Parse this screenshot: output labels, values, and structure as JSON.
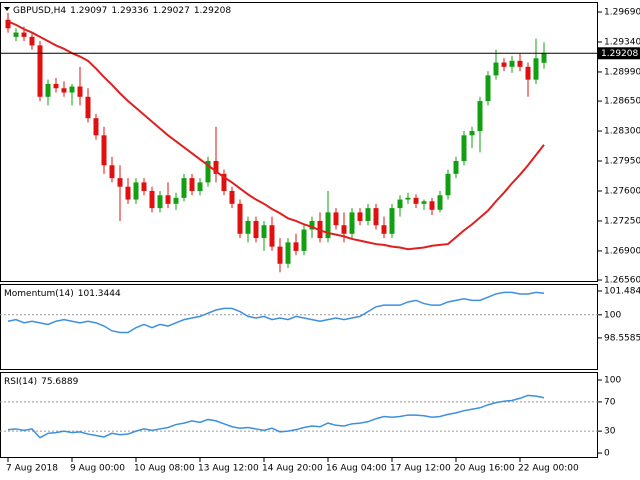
{
  "chart_data": [
    {
      "type": "candlestick",
      "title": "GBPUSD,H4",
      "categories": [
        "7 Aug 2018",
        null,
        null,
        null,
        null,
        null,
        null,
        null,
        "9 Aug 00:00",
        null,
        null,
        null,
        null,
        null,
        null,
        null,
        "10 Aug 08:00",
        null,
        null,
        null,
        null,
        null,
        null,
        null,
        "13 Aug 12:00",
        null,
        null,
        null,
        null,
        null,
        null,
        null,
        "14 Aug 20:00",
        null,
        null,
        null,
        null,
        null,
        null,
        null,
        "16 Aug 04:00",
        null,
        null,
        null,
        null,
        null,
        null,
        null,
        "17 Aug 12:00",
        null,
        null,
        null,
        null,
        null,
        null,
        null,
        "20 Aug 16:00",
        null,
        null,
        null,
        null,
        null,
        null,
        null,
        "22 Aug 00:00",
        null,
        null,
        null
      ],
      "candles": [
        [
          1.296,
          1.2968,
          1.2945,
          1.295
        ],
        [
          1.294,
          1.295,
          1.2935,
          1.2945
        ],
        [
          1.2945,
          1.2952,
          1.2935,
          1.294
        ],
        [
          1.294,
          1.2945,
          1.2925,
          1.293
        ],
        [
          1.293,
          1.2935,
          1.2865,
          1.287
        ],
        [
          1.287,
          1.289,
          1.286,
          1.2885
        ],
        [
          1.2885,
          1.2892,
          1.2875,
          1.288
        ],
        [
          1.288,
          1.2888,
          1.287,
          1.2875
        ],
        [
          1.2875,
          1.2885,
          1.286,
          1.2882
        ],
        [
          1.2882,
          1.2905,
          1.286,
          1.287
        ],
        [
          1.287,
          1.288,
          1.284,
          1.2845
        ],
        [
          1.2845,
          1.285,
          1.282,
          1.2825
        ],
        [
          1.2825,
          1.2835,
          1.278,
          1.279
        ],
        [
          1.279,
          1.28,
          1.277,
          1.2775
        ],
        [
          1.2775,
          1.279,
          1.2725,
          1.2765
        ],
        [
          1.2765,
          1.2775,
          1.2745,
          1.275
        ],
        [
          1.275,
          1.2775,
          1.2745,
          1.277
        ],
        [
          1.277,
          1.2775,
          1.2755,
          1.276
        ],
        [
          1.276,
          1.2765,
          1.2735,
          1.274
        ],
        [
          1.274,
          1.276,
          1.2735,
          1.2755
        ],
        [
          1.2755,
          1.277,
          1.274,
          1.2745
        ],
        [
          1.2745,
          1.2758,
          1.2738,
          1.2752
        ],
        [
          1.2752,
          1.278,
          1.2748,
          1.2775
        ],
        [
          1.2775,
          1.278,
          1.2755,
          1.276
        ],
        [
          1.276,
          1.2775,
          1.2755,
          1.277
        ],
        [
          1.277,
          1.28,
          1.2765,
          1.2795
        ],
        [
          1.2795,
          1.2835,
          1.277,
          1.278
        ],
        [
          1.278,
          1.2785,
          1.2755,
          1.276
        ],
        [
          1.276,
          1.2765,
          1.274,
          1.2745
        ],
        [
          1.2745,
          1.275,
          1.2705,
          1.271
        ],
        [
          1.271,
          1.273,
          1.27,
          1.2725
        ],
        [
          1.2725,
          1.273,
          1.27,
          1.2705
        ],
        [
          1.2705,
          1.2725,
          1.269,
          1.272
        ],
        [
          1.272,
          1.273,
          1.269,
          1.2695
        ],
        [
          1.2695,
          1.2705,
          1.2665,
          1.2675
        ],
        [
          1.2675,
          1.2705,
          1.267,
          1.27
        ],
        [
          1.27,
          1.271,
          1.2685,
          1.269
        ],
        [
          1.269,
          1.272,
          1.2685,
          1.2715
        ],
        [
          1.2715,
          1.273,
          1.2705,
          1.2725
        ],
        [
          1.2725,
          1.2735,
          1.27,
          1.2705
        ],
        [
          1.2705,
          1.276,
          1.27,
          1.2735
        ],
        [
          1.2735,
          1.274,
          1.2715,
          1.272
        ],
        [
          1.272,
          1.2735,
          1.27,
          1.271
        ],
        [
          1.271,
          1.274,
          1.2705,
          1.2735
        ],
        [
          1.2735,
          1.274,
          1.272,
          1.2725
        ],
        [
          1.2725,
          1.2745,
          1.272,
          1.274
        ],
        [
          1.274,
          1.2745,
          1.2715,
          1.272
        ],
        [
          1.272,
          1.273,
          1.2705,
          1.271
        ],
        [
          1.271,
          1.2745,
          1.2705,
          1.274
        ],
        [
          1.274,
          1.2755,
          1.273,
          1.275
        ],
        [
          1.275,
          1.2758,
          1.2745,
          1.2752
        ],
        [
          1.2752,
          1.2756,
          1.274,
          1.2745
        ],
        [
          1.2745,
          1.275,
          1.2738,
          1.2748
        ],
        [
          1.2748,
          1.2752,
          1.2732,
          1.2738
        ],
        [
          1.2738,
          1.276,
          1.2735,
          1.2755
        ],
        [
          1.2755,
          1.2785,
          1.275,
          1.278
        ],
        [
          1.278,
          1.28,
          1.2775,
          1.2795
        ],
        [
          1.2795,
          1.283,
          1.279,
          1.2825
        ],
        [
          1.2825,
          1.2835,
          1.281,
          1.283
        ],
        [
          1.283,
          1.287,
          1.2805,
          1.2865
        ],
        [
          1.2865,
          1.29,
          1.286,
          1.2895
        ],
        [
          1.2895,
          1.2925,
          1.289,
          1.291
        ],
        [
          1.291,
          1.2915,
          1.29,
          1.2905
        ],
        [
          1.2905,
          1.2918,
          1.2898,
          1.2912
        ],
        [
          1.2912,
          1.292,
          1.29,
          1.2905
        ],
        [
          1.2905,
          1.291,
          1.287,
          1.289
        ],
        [
          1.289,
          1.2938,
          1.2885,
          1.2915
        ],
        [
          1.29097,
          1.29336,
          1.29027,
          1.29208
        ]
      ],
      "up_color": "#12a012",
      "down_color": "#e01010",
      "ma": {
        "color": "#e02020",
        "values": [
          1.2958,
          1.2954,
          1.2949,
          1.2945,
          1.294,
          1.2935,
          1.293,
          1.2926,
          1.2921,
          1.2917,
          1.2912,
          1.2903,
          1.2893,
          1.2884,
          1.2874,
          1.2865,
          1.2857,
          1.2849,
          1.2841,
          1.2833,
          1.2825,
          1.2818,
          1.2811,
          1.2804,
          1.2797,
          1.279,
          1.2783,
          1.2776,
          1.277,
          1.2763,
          1.2756,
          1.275,
          1.2745,
          1.2739,
          1.2734,
          1.2728,
          1.2725,
          1.2721,
          1.2718,
          1.2714,
          1.2711,
          1.2709,
          1.2707,
          1.2704,
          1.2702,
          1.27,
          1.2698,
          1.2697,
          1.2695,
          1.2694,
          1.2692,
          1.2693,
          1.2694,
          1.2696,
          1.2697,
          1.2698,
          1.2706,
          1.2714,
          1.2721,
          1.2729,
          1.2737,
          1.2748,
          1.2758,
          1.2769,
          1.2779,
          1.279,
          1.2802,
          1.2814
        ]
      },
      "ylim": [
        1.26537,
        1.29807
      ],
      "yticks": [
        {
          "value": 1.2969,
          "label": "1.29690"
        },
        {
          "value": 1.2934,
          "label": "1.29340"
        },
        {
          "value": 1.2899,
          "label": "1.28990"
        },
        {
          "value": 1.2865,
          "label": "1.28650"
        },
        {
          "value": 1.283,
          "label": "1.28300"
        },
        {
          "value": 1.2795,
          "label": "1.27950"
        },
        {
          "value": 1.276,
          "label": "1.27600"
        },
        {
          "value": 1.2725,
          "label": "1.27250"
        },
        {
          "value": 1.269,
          "label": "1.26900"
        },
        {
          "value": 1.2656,
          "label": "1.26560"
        }
      ]
    },
    {
      "type": "line",
      "title": "Momentum(14)",
      "color": "#3d8fe0",
      "values": [
        99.6,
        99.7,
        99.5,
        99.6,
        99.5,
        99.4,
        99.6,
        99.7,
        99.6,
        99.5,
        99.6,
        99.5,
        99.3,
        99.0,
        98.9,
        98.9,
        99.2,
        99.4,
        99.2,
        99.4,
        99.3,
        99.5,
        99.7,
        99.8,
        99.9,
        100.1,
        100.3,
        100.4,
        100.4,
        100.2,
        99.9,
        99.8,
        99.9,
        99.7,
        99.8,
        99.7,
        99.9,
        99.8,
        99.7,
        99.6,
        99.7,
        99.8,
        99.7,
        99.8,
        99.9,
        100.2,
        100.5,
        100.6,
        100.6,
        100.6,
        100.8,
        100.9,
        100.7,
        100.6,
        100.6,
        100.8,
        100.9,
        101.0,
        100.9,
        100.9,
        101.1,
        101.3,
        101.4,
        101.4,
        101.3,
        101.3,
        101.4,
        101.3444
      ],
      "ylim": [
        96.56,
        101.92
      ],
      "yticks": [
        101.4841,
        100,
        98.5585
      ],
      "levels": [
        100
      ]
    },
    {
      "type": "line",
      "title": "RSI(14)",
      "color": "#3d8fe0",
      "values": [
        32,
        33,
        31,
        33,
        21,
        27,
        28,
        30,
        28,
        29,
        26,
        24,
        22,
        27,
        25,
        26,
        30,
        33,
        31,
        33,
        35,
        39,
        41,
        44,
        42,
        46,
        44,
        40,
        36,
        34,
        35,
        33,
        31,
        34,
        29,
        30,
        32,
        35,
        37,
        36,
        41,
        38,
        37,
        40,
        41,
        43,
        47,
        50,
        49,
        50,
        52,
        52,
        51,
        49,
        50,
        53,
        55,
        58,
        60,
        62,
        66,
        69,
        71,
        72,
        75,
        79,
        78,
        75.6889
      ],
      "ylim": [
        -6.8,
        111
      ],
      "yticks": [
        100,
        70,
        30,
        0
      ],
      "levels": [
        70,
        30
      ]
    }
  ]
}
